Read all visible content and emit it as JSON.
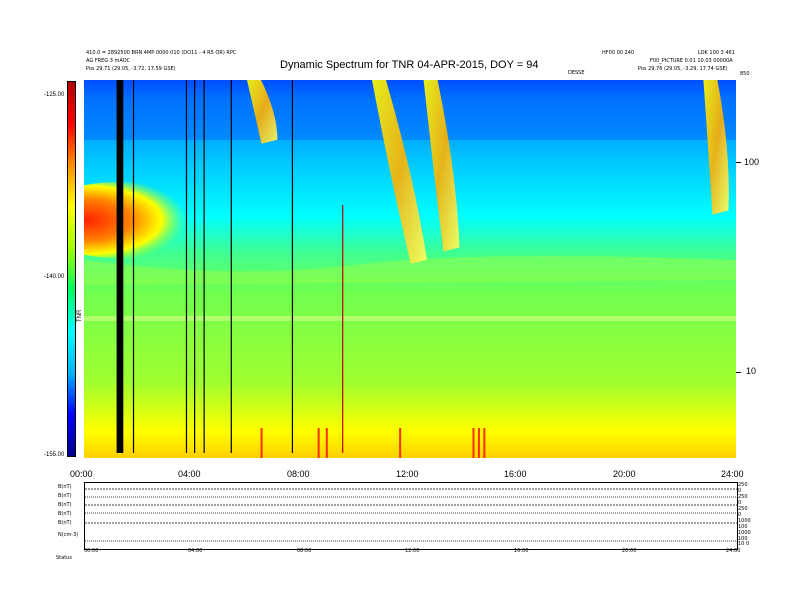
{
  "chart_data": {
    "type": "heatmap",
    "title": "Dynamic Spectrum for TNR 04-APR-2015, DOY = 94",
    "header_left": [
      "410.0 = 2892500 BRN 4MP 0000 010 (DO11 - 4 R5 OR) RPC",
      "AG FREG 3 mAOC",
      "Pos   29.71 (29.05, -3.72, 17.59 GSE)"
    ],
    "header_right": [
      "HF00 00 240",
      "LOK 100 3 461",
      "F00_PICTURE 0.01 10.03 00000A",
      "Pos   29.76 (29.05, -3.29, 17.74 GSE)"
    ],
    "header_center_small": "DESSE",
    "colorbar": {
      "ticks": [
        "-125.00",
        "-140.00",
        "-155.00"
      ],
      "label": "TNR",
      "range": [
        -155,
        -125
      ],
      "colors": [
        "#00008a",
        "#0000ff",
        "#00b4ff",
        "#00ffff",
        "#00ff60",
        "#a0ff00",
        "#ffff00",
        "#ff9000",
        "#ff0000",
        "#b00000"
      ]
    },
    "x_axis": {
      "ticks": [
        "00:00",
        "04:00",
        "08:00",
        "12:00",
        "16:00",
        "20:00",
        "24:00"
      ],
      "range_hours": [
        0,
        24
      ]
    },
    "y_axis_right": {
      "ticks": [
        "100",
        "10"
      ],
      "top_label": "850",
      "scale": "log",
      "range_khz": [
        4,
        250
      ]
    },
    "black_vertical_lines_hours": [
      1.2,
      1.3,
      1.8,
      3.75,
      4.05,
      4.4,
      5.4,
      7.65
    ],
    "red_vertical_lines_hours": [
      9.5
    ],
    "type_iii_bursts": [
      {
        "start_hours": 10.6,
        "end_hours": 12.4,
        "end_khz": 35
      },
      {
        "start_hours": 12.5,
        "end_hours": 13.6,
        "end_khz": 40
      },
      {
        "start_hours": 6.0,
        "end_hours": 6.9,
        "end_khz": 130
      },
      {
        "start_hours": 22.8,
        "end_hours": 23.5,
        "end_khz": 60
      }
    ],
    "bottom_panel": {
      "rows": [
        "B(nT)",
        "B(nT)",
        "B(nT)",
        "B(nT)",
        "B(nT)",
        "N(cm-3)"
      ],
      "right_ticks": [
        [
          "250",
          "0"
        ],
        [
          "250",
          "0"
        ],
        [
          "250",
          "0"
        ],
        [
          "1000",
          "100"
        ],
        [
          "1000",
          "100"
        ],
        [
          "10",
          "0"
        ]
      ],
      "x_ticks": [
        "00:00",
        "04:00",
        "08:00",
        "12:00",
        "16:00",
        "20:00",
        "24:00"
      ],
      "status_label": "Status"
    }
  }
}
